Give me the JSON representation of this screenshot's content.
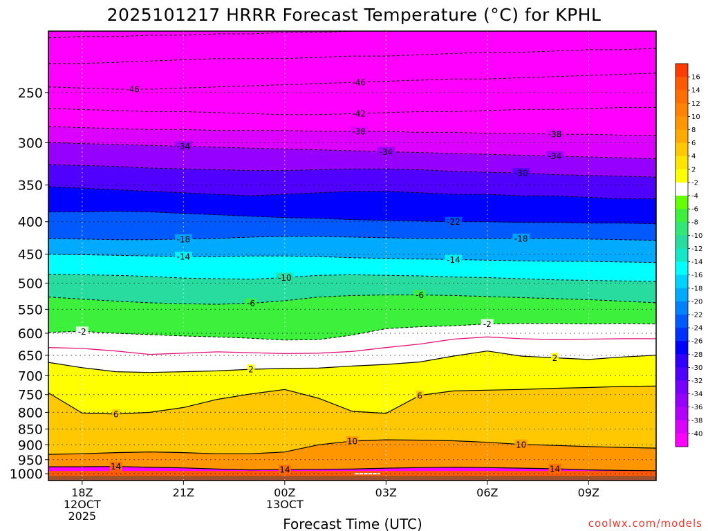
{
  "chart_data": {
    "type": "heatmap",
    "title": "2025101217 HRRR Forecast Temperature (°C) for KPHL",
    "xlabel": "Forecast Time (UTC)",
    "credit": "coolwx.com/models",
    "x_ticks": [
      {
        "hour": 1,
        "lines": [
          "18Z",
          "12OCT",
          "2025"
        ]
      },
      {
        "hour": 4,
        "lines": [
          "21Z"
        ]
      },
      {
        "hour": 7,
        "lines": [
          "00Z",
          "13OCT"
        ]
      },
      {
        "hour": 10,
        "lines": [
          "03Z"
        ]
      },
      {
        "hour": 13,
        "lines": [
          "06Z"
        ]
      },
      {
        "hour": 16,
        "lines": [
          "09Z"
        ]
      }
    ],
    "xlim": [
      0,
      18
    ],
    "y_ticks": [
      250,
      300,
      350,
      400,
      450,
      500,
      550,
      600,
      650,
      700,
      750,
      800,
      850,
      900,
      950,
      1000
    ],
    "ylim_hpa": [
      1025,
      200
    ],
    "surface_band_hpa": [
      1008,
      1025
    ],
    "colorbar": {
      "tick_labels": [
        "16",
        "14",
        "12",
        "10",
        "8",
        "6",
        "4",
        "2",
        "-2",
        "-4",
        "-6",
        "-8",
        "-10",
        "-12",
        "-14",
        "-16",
        "-18",
        "-20",
        "-22",
        "-24",
        "-26",
        "-28",
        "-30",
        "-32",
        "-34",
        "-36",
        "-38",
        "-40"
      ],
      "colors": [
        "#ff3c00",
        "#ff5a00",
        "#ff6e00",
        "#ff8200",
        "#ff9600",
        "#ffaa00",
        "#ffc800",
        "#ffe600",
        "#ffff00",
        "#ffffff",
        "#64ff00",
        "#3cf03c",
        "#32e678",
        "#28dca0",
        "#14e6c8",
        "#00ffff",
        "#00d2ff",
        "#00aaff",
        "#0082ff",
        "#005aff",
        "#0032ff",
        "#0000ff",
        "#3200ff",
        "#5000ff",
        "#7800ff",
        "#9600ff",
        "#b400ff",
        "#dc00ff",
        "#ff00ff"
      ]
    },
    "levels": [
      {
        "t": 14,
        "hpa": [
          975,
          975,
          974,
          977,
          979,
          983,
          986,
          985,
          984,
          983,
          980,
          978,
          977,
          978,
          980,
          982,
          986,
          988,
          989
        ]
      },
      {
        "t": 10,
        "hpa": [
          932,
          930,
          926,
          924,
          926,
          930,
          930,
          924,
          900,
          888,
          884,
          885,
          887,
          892,
          899,
          902,
          906,
          909,
          911
        ]
      },
      {
        "t": 6,
        "hpa": [
          745,
          802,
          805,
          800,
          786,
          763,
          748,
          736,
          760,
          797,
          803,
          752,
          740,
          738,
          736,
          733,
          731,
          728,
          727
        ]
      },
      {
        "t": 2,
        "hpa": [
          667,
          680,
          690,
          692,
          690,
          688,
          684,
          682,
          681,
          676,
          672,
          666,
          652,
          640,
          652,
          656,
          660,
          654,
          650
        ]
      },
      {
        "t": 0,
        "hpa": [
          632,
          634,
          640,
          648,
          645,
          642,
          644,
          646,
          645,
          641,
          632,
          624,
          613,
          608,
          612,
          614,
          613,
          612,
          612
        ]
      },
      {
        "t": -2,
        "hpa": [
          598,
          596,
          600,
          603,
          606,
          608,
          611,
          615,
          614,
          604,
          590,
          586,
          584,
          580,
          579,
          579,
          580,
          579,
          580
        ]
      },
      {
        "t": -6,
        "hpa": [
          526,
          530,
          534,
          537,
          539,
          540,
          538,
          533,
          526,
          523,
          522,
          522,
          523,
          525,
          527,
          529,
          531,
          534,
          537
        ]
      },
      {
        "t": -10,
        "hpa": [
          484,
          485,
          486,
          488,
          491,
          492,
          493,
          490,
          486,
          485,
          486,
          487,
          489,
          490,
          492,
          494,
          495,
          496,
          497
        ]
      },
      {
        "t": -14,
        "hpa": [
          450,
          451,
          452,
          453,
          454,
          454,
          453,
          453,
          454,
          456,
          457,
          458,
          459,
          460,
          461,
          462,
          462,
          463,
          464
        ]
      },
      {
        "t": -18,
        "hpa": [
          425,
          426,
          427,
          427,
          426,
          425,
          423,
          422,
          422,
          423,
          424,
          425,
          425,
          425,
          425,
          425,
          426,
          427,
          428
        ]
      },
      {
        "t": -22,
        "hpa": [
          386,
          386,
          385,
          386,
          388,
          390,
          392,
          394,
          395,
          397,
          398,
          399,
          400,
          400,
          401,
          401,
          402,
          402,
          403
        ]
      },
      {
        "t": -26,
        "hpa": [
          352,
          354,
          356,
          358,
          360,
          362,
          364,
          362,
          360,
          358,
          358,
          360,
          362,
          362,
          364,
          364,
          366,
          368,
          368
        ]
      },
      {
        "t": -30,
        "hpa": [
          325,
          326,
          327,
          329,
          330,
          331,
          332,
          332,
          331,
          330,
          330,
          331,
          333,
          334,
          335,
          337,
          338,
          339,
          340
        ]
      },
      {
        "t": -34,
        "hpa": [
          300,
          301,
          302,
          303,
          304,
          305,
          306,
          307,
          308,
          309,
          310,
          311,
          312,
          313,
          314,
          315,
          316,
          317,
          318
        ]
      },
      {
        "t": -38,
        "hpa": [
          283,
          284,
          285,
          286,
          286,
          287,
          287,
          287,
          288,
          288,
          288,
          289,
          289,
          290,
          290,
          291,
          291,
          292,
          292
        ]
      },
      {
        "t": -42,
        "hpa": [
          265,
          266,
          267,
          268,
          268,
          269,
          270,
          271,
          271,
          270,
          269,
          268,
          268,
          267,
          266,
          266,
          265,
          264,
          264
        ]
      },
      {
        "t": -46,
        "hpa": [
          245,
          246,
          247,
          247,
          246,
          245,
          244,
          243,
          242,
          241,
          240,
          239,
          238,
          238,
          237,
          236,
          235,
          234,
          233
        ]
      },
      {
        "t": -50,
        "hpa": [
          225,
          225,
          224,
          223,
          222,
          221,
          221,
          221,
          220,
          219,
          219,
          218,
          217,
          216,
          216,
          215,
          214,
          214,
          213
        ]
      },
      {
        "t": -54,
        "hpa": [
          205,
          204,
          204,
          203,
          203,
          202,
          202,
          201,
          201,
          200,
          200,
          199,
          199,
          198,
          198,
          197,
          197,
          196,
          196
        ]
      }
    ],
    "contour_labels": [
      {
        "t": -46,
        "hour": 2.5
      },
      {
        "t": -46,
        "hour": 9.2
      },
      {
        "t": -42,
        "hour": 9.2
      },
      {
        "t": -38,
        "hour": 9.2
      },
      {
        "t": -38,
        "hour": 15
      },
      {
        "t": -34,
        "hour": 4
      },
      {
        "t": -34,
        "hour": 10
      },
      {
        "t": -34,
        "hour": 15
      },
      {
        "t": -30,
        "hour": 14
      },
      {
        "t": -22,
        "hour": 12
      },
      {
        "t": -18,
        "hour": 4
      },
      {
        "t": -18,
        "hour": 14
      },
      {
        "t": -14,
        "hour": 4
      },
      {
        "t": -14,
        "hour": 12
      },
      {
        "t": -10,
        "hour": 7
      },
      {
        "t": -6,
        "hour": 6
      },
      {
        "t": -6,
        "hour": 11
      },
      {
        "t": -2,
        "hour": 1
      },
      {
        "t": -2,
        "hour": 13
      },
      {
        "t": 2,
        "hour": 6
      },
      {
        "t": 2,
        "hour": 15
      },
      {
        "t": 6,
        "hour": 2
      },
      {
        "t": 6,
        "hour": 11
      },
      {
        "t": 10,
        "hour": 9
      },
      {
        "t": 10,
        "hour": 14
      },
      {
        "t": 14,
        "hour": 2
      },
      {
        "t": 14,
        "hour": 7
      },
      {
        "t": 14,
        "hour": 15
      }
    ]
  }
}
